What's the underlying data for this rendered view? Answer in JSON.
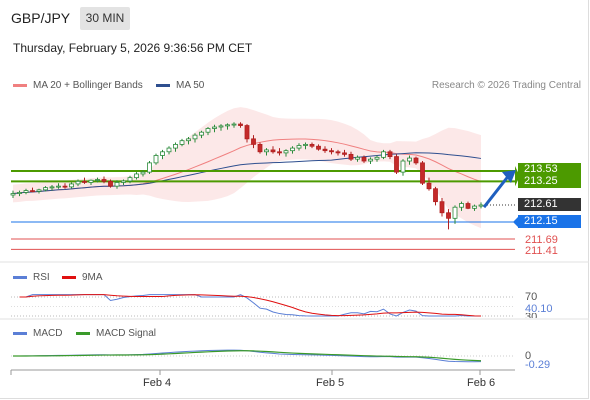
{
  "header": {
    "pair": "GBP/JPY",
    "timeframe": "30 MIN",
    "datetime": "Thursday, February 5, 2026 9:36:56 PM CET",
    "credit": "Research © 2026 Trading Central"
  },
  "legend": {
    "ma20_label": "MA 20 + Bollinger Bands",
    "ma50_label": "MA 50",
    "rsi_label": "RSI",
    "rsi_ma_label": "9MA",
    "macd_label": "MACD",
    "macd_signal_label": "MACD Signal"
  },
  "colors": {
    "ma20": "#f08080",
    "ma50": "#2e4f8f",
    "resistance": "#4c9a00",
    "pivot": "#1a73e8",
    "support": "#e05050",
    "last_price": "#333333",
    "rsi": "#5b7fd6",
    "rsi_ma": "#e01010",
    "macd_signal": "#3a9a2a"
  },
  "levels": {
    "r2": "213.53",
    "r1": "213.25",
    "last": "212.61",
    "pivot": "212.15",
    "s1": "211.69",
    "s2": "211.41"
  },
  "indicators": {
    "rsi_upper": "70",
    "rsi_value": "40.10",
    "rsi_lower": "30",
    "macd_zero": "0",
    "macd_value": "-0.29"
  },
  "xaxis": [
    "Feb 4",
    "Feb 5",
    "Feb 6"
  ],
  "chart_data": {
    "type": "candlestick",
    "title": "GBP/JPY 30 MIN",
    "ylim": [
      211.3,
      215.4
    ],
    "candles_ohlc": [
      [
        212.88,
        213.0,
        212.8,
        212.92
      ],
      [
        212.92,
        213.0,
        212.85,
        212.95
      ],
      [
        212.95,
        213.05,
        212.9,
        213.0
      ],
      [
        213.0,
        213.08,
        212.95,
        212.98
      ],
      [
        212.98,
        213.05,
        212.92,
        213.02
      ],
      [
        213.02,
        213.12,
        212.98,
        213.08
      ],
      [
        213.08,
        213.15,
        213.0,
        213.1
      ],
      [
        213.1,
        213.2,
        213.05,
        213.12
      ],
      [
        213.12,
        213.2,
        213.05,
        213.1
      ],
      [
        213.1,
        213.22,
        213.06,
        213.18
      ],
      [
        213.18,
        213.3,
        213.12,
        213.25
      ],
      [
        213.25,
        213.35,
        213.18,
        213.22
      ],
      [
        213.22,
        213.3,
        213.15,
        213.28
      ],
      [
        213.28,
        213.35,
        213.22,
        213.3
      ],
      [
        213.3,
        213.38,
        213.2,
        213.25
      ],
      [
        213.25,
        213.3,
        213.08,
        213.12
      ],
      [
        213.12,
        213.28,
        213.05,
        213.22
      ],
      [
        213.22,
        213.3,
        213.15,
        213.26
      ],
      [
        213.26,
        213.4,
        213.2,
        213.35
      ],
      [
        213.35,
        213.5,
        213.3,
        213.45
      ],
      [
        213.45,
        213.55,
        213.38,
        213.5
      ],
      [
        213.5,
        213.8,
        213.45,
        213.75
      ],
      [
        213.75,
        214.0,
        213.7,
        213.95
      ],
      [
        213.95,
        214.1,
        213.85,
        214.05
      ],
      [
        214.05,
        214.2,
        213.98,
        214.15
      ],
      [
        214.15,
        214.3,
        214.05,
        214.25
      ],
      [
        214.25,
        214.4,
        214.2,
        214.35
      ],
      [
        214.35,
        214.45,
        214.25,
        214.4
      ],
      [
        214.4,
        214.55,
        214.3,
        214.5
      ],
      [
        214.5,
        214.62,
        214.42,
        214.58
      ],
      [
        214.58,
        214.72,
        214.5,
        214.68
      ],
      [
        214.68,
        214.78,
        214.58,
        214.72
      ],
      [
        214.72,
        214.8,
        214.62,
        214.75
      ],
      [
        214.75,
        214.82,
        214.65,
        214.78
      ],
      [
        214.78,
        214.85,
        214.7,
        214.8
      ],
      [
        214.8,
        214.85,
        214.7,
        214.76
      ],
      [
        214.76,
        214.8,
        214.3,
        214.4
      ],
      [
        214.4,
        214.5,
        214.15,
        214.25
      ],
      [
        214.25,
        214.3,
        214.0,
        214.05
      ],
      [
        214.05,
        214.15,
        213.95,
        214.1
      ],
      [
        214.1,
        214.2,
        214.0,
        214.05
      ],
      [
        214.05,
        214.15,
        213.95,
        214.02
      ],
      [
        214.02,
        214.12,
        213.92,
        214.08
      ],
      [
        214.08,
        214.2,
        214.0,
        214.15
      ],
      [
        214.15,
        214.28,
        214.08,
        214.22
      ],
      [
        214.22,
        214.3,
        214.12,
        214.25
      ],
      [
        214.25,
        214.3,
        214.15,
        214.2
      ],
      [
        214.2,
        214.25,
        214.08,
        214.12
      ],
      [
        214.12,
        214.2,
        214.02,
        214.08
      ],
      [
        214.08,
        214.15,
        213.98,
        214.05
      ],
      [
        214.05,
        214.1,
        213.95,
        214.02
      ],
      [
        214.02,
        214.1,
        213.92,
        213.98
      ],
      [
        213.98,
        214.05,
        213.8,
        213.85
      ],
      [
        213.85,
        213.95,
        213.78,
        213.9
      ],
      [
        213.9,
        213.95,
        213.75,
        213.8
      ],
      [
        213.8,
        213.9,
        213.72,
        213.85
      ],
      [
        213.85,
        213.95,
        213.78,
        213.9
      ],
      [
        213.9,
        214.1,
        213.85,
        214.05
      ],
      [
        214.05,
        214.1,
        213.85,
        213.92
      ],
      [
        213.92,
        213.98,
        213.45,
        213.5
      ],
      [
        213.5,
        213.85,
        213.4,
        213.8
      ],
      [
        213.8,
        213.95,
        213.7,
        213.88
      ],
      [
        213.88,
        213.92,
        213.7,
        213.75
      ],
      [
        213.75,
        213.8,
        213.15,
        213.2
      ],
      [
        213.2,
        213.35,
        213.0,
        213.05
      ],
      [
        213.05,
        213.1,
        212.6,
        212.7
      ],
      [
        212.7,
        212.8,
        212.3,
        212.4
      ],
      [
        212.4,
        212.5,
        211.95,
        212.25
      ],
      [
        212.25,
        212.6,
        212.1,
        212.55
      ],
      [
        212.55,
        212.7,
        212.45,
        212.65
      ],
      [
        212.65,
        212.7,
        212.5,
        212.52
      ],
      [
        212.52,
        212.62,
        212.45,
        212.58
      ],
      [
        212.58,
        212.68,
        212.52,
        212.61
      ]
    ],
    "moving_averages": [
      "MA 20 + Bollinger Bands",
      "MA 50"
    ],
    "levels": {
      "resistance": [
        213.53,
        213.25
      ],
      "last": 212.61,
      "pivot": 212.15,
      "support": [
        211.69,
        211.41
      ]
    },
    "rsi": {
      "value": 40.1,
      "levels": [
        70,
        30
      ]
    },
    "macd": {
      "value": -0.29,
      "zero": 0
    },
    "x_ticks": [
      "Feb 4",
      "Feb 5",
      "Feb 6"
    ]
  }
}
